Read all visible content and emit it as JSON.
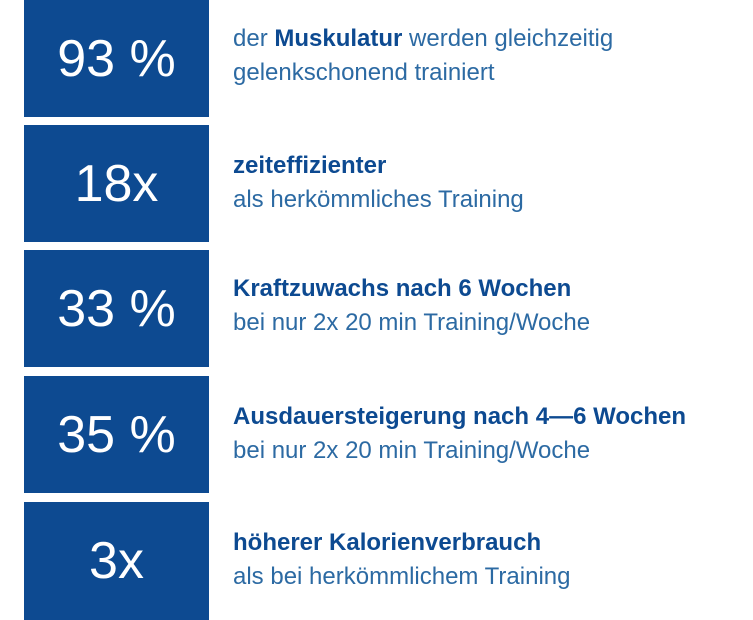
{
  "colors": {
    "box_background": "#0d4a91",
    "box_text": "#ffffff",
    "accent_text": "#0d4a91",
    "body_text": "#2c6aa3"
  },
  "stats": [
    {
      "value": "93 %",
      "line1_prefix": "der ",
      "line1_strong": "Muskulatur",
      "line1_suffix": " werden gleichzeitig",
      "line2": "gelenkschonend trainiert"
    },
    {
      "value": "18x",
      "line1_strong": "zeiteffizienter",
      "line2": "als herkömmliches Training"
    },
    {
      "value": "33 %",
      "line1_strong": "Kraftzuwachs nach 6 Wochen",
      "line2": "bei nur 2x 20 min Training/Woche"
    },
    {
      "value": "35 %",
      "line1_strong": "Ausdauersteigerung nach 4—6 Wochen",
      "line2": "bei nur 2x 20 min Training/Woche"
    },
    {
      "value": "3x",
      "line1_strong": "höherer Kalorienverbrauch",
      "line2": "als bei herkömmlichem Training"
    }
  ]
}
